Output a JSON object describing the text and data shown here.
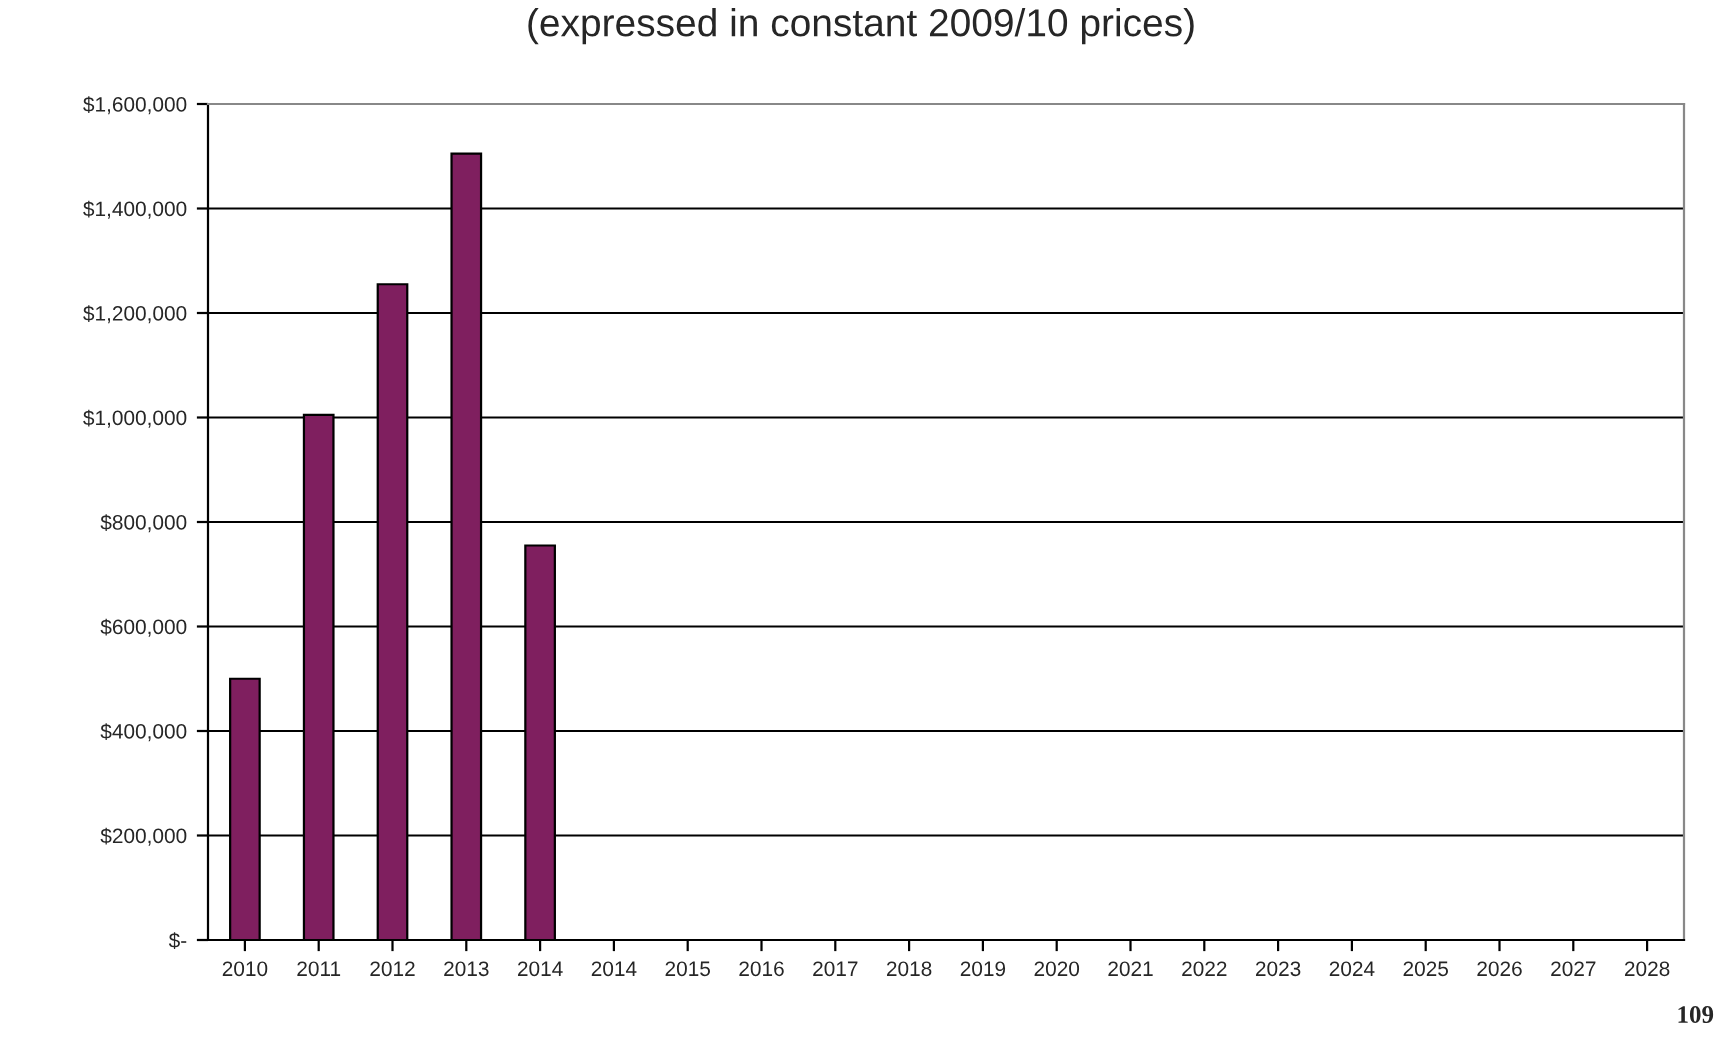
{
  "chart_data": {
    "type": "bar",
    "title": "(expressed in constant 2009/10 prices)",
    "categories": [
      "2010",
      "2011",
      "2012",
      "2013",
      "2014",
      "2014",
      "2015",
      "2016",
      "2017",
      "2018",
      "2019",
      "2020",
      "2021",
      "2022",
      "2023",
      "2024",
      "2025",
      "2026",
      "2027",
      "2028"
    ],
    "values": [
      500000,
      1005000,
      1255000,
      1505000,
      755000,
      null,
      null,
      null,
      null,
      null,
      null,
      null,
      null,
      null,
      null,
      null,
      null,
      null,
      null,
      null
    ],
    "color": "#7f1f5f",
    "ylim": [
      0,
      1600000
    ],
    "yticks": [
      {
        "value": 0,
        "label": "$-"
      },
      {
        "value": 200000,
        "label": "$200,000"
      },
      {
        "value": 400000,
        "label": "$400,000"
      },
      {
        "value": 600000,
        "label": "$600,000"
      },
      {
        "value": 800000,
        "label": "$800,000"
      },
      {
        "value": 1000000,
        "label": "$1,000,000"
      },
      {
        "value": 1200000,
        "label": "$1,200,000"
      },
      {
        "value": 1400000,
        "label": "$1,400,000"
      },
      {
        "value": 1600000,
        "label": "$1,600,000"
      }
    ],
    "grid": "y",
    "annotations": [
      "109"
    ]
  }
}
